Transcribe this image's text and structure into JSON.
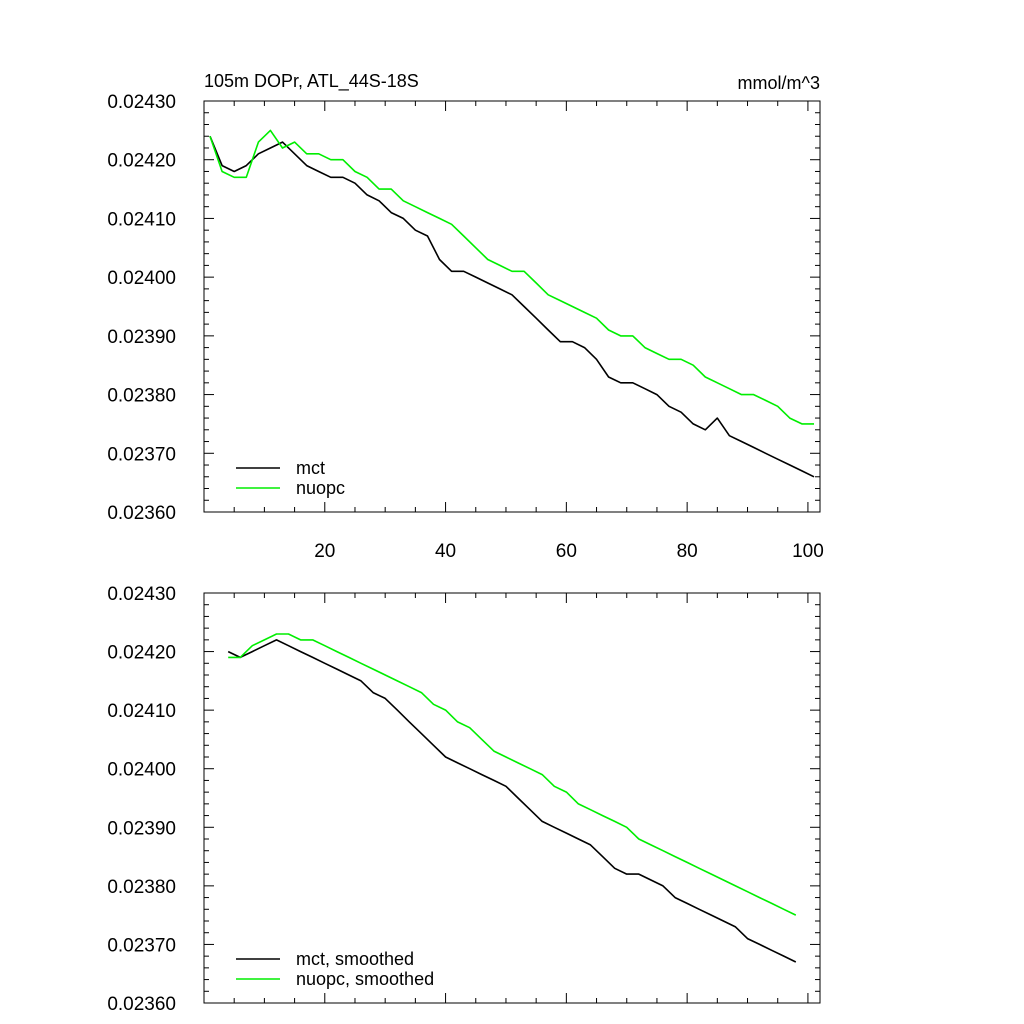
{
  "chart_data": [
    {
      "type": "line",
      "title": "105m DOPr, ATL_44S-18S",
      "units": "mmol/m^3",
      "xlabel": "",
      "ylabel": "",
      "xlim": [
        0,
        102
      ],
      "ylim": [
        0.0236,
        0.0243
      ],
      "yticks": [
        "0.02430",
        "0.02420",
        "0.02410",
        "0.02400",
        "0.02390",
        "0.02380",
        "0.02370",
        "0.02360"
      ],
      "ytick_values": [
        0.0243,
        0.0242,
        0.0241,
        0.024,
        0.0239,
        0.0238,
        0.0237,
        0.0236
      ],
      "xticks": [
        "20",
        "40",
        "60",
        "80",
        "100"
      ],
      "xtick_values": [
        20,
        40,
        60,
        80,
        100
      ],
      "legend_position": "bottom-left",
      "series": [
        {
          "name": "mct",
          "color": "#000000",
          "x": [
            1,
            3,
            5,
            7,
            9,
            11,
            13,
            15,
            17,
            19,
            21,
            23,
            25,
            27,
            29,
            31,
            33,
            35,
            37,
            39,
            41,
            43,
            45,
            47,
            49,
            51,
            53,
            55,
            57,
            59,
            61,
            63,
            65,
            67,
            69,
            71,
            73,
            75,
            77,
            79,
            81,
            83,
            85,
            87,
            89,
            91,
            93,
            95,
            97,
            99,
            101
          ],
          "values": [
            0.02424,
            0.02419,
            0.02418,
            0.02419,
            0.02421,
            0.02422,
            0.02423,
            0.02421,
            0.02419,
            0.02418,
            0.02417,
            0.02417,
            0.02416,
            0.02414,
            0.02413,
            0.02411,
            0.0241,
            0.02408,
            0.02407,
            0.02403,
            0.02401,
            0.02401,
            0.024,
            0.02399,
            0.02398,
            0.02397,
            0.02395,
            0.02393,
            0.02391,
            0.02389,
            0.02389,
            0.02388,
            0.02386,
            0.02383,
            0.02382,
            0.02382,
            0.02381,
            0.0238,
            0.02378,
            0.02377,
            0.02375,
            0.02374,
            0.02376,
            0.02373,
            0.02372,
            0.02371,
            0.0237,
            0.02369,
            0.02368,
            0.02367,
            0.02366
          ]
        },
        {
          "name": "nuopc",
          "color": "#00ee00",
          "x": [
            1,
            3,
            5,
            7,
            9,
            11,
            13,
            15,
            17,
            19,
            21,
            23,
            25,
            27,
            29,
            31,
            33,
            35,
            37,
            39,
            41,
            43,
            45,
            47,
            49,
            51,
            53,
            55,
            57,
            59,
            61,
            63,
            65,
            67,
            69,
            71,
            73,
            75,
            77,
            79,
            81,
            83,
            85,
            87,
            89,
            91,
            93,
            95,
            97,
            99,
            101
          ],
          "values": [
            0.02424,
            0.02418,
            0.02417,
            0.02417,
            0.02423,
            0.02425,
            0.02422,
            0.02423,
            0.02421,
            0.02421,
            0.0242,
            0.0242,
            0.02418,
            0.02417,
            0.02415,
            0.02415,
            0.02413,
            0.02412,
            0.02411,
            0.0241,
            0.02409,
            0.02407,
            0.02405,
            0.02403,
            0.02402,
            0.02401,
            0.02401,
            0.02399,
            0.02397,
            0.02396,
            0.02395,
            0.02394,
            0.02393,
            0.02391,
            0.0239,
            0.0239,
            0.02388,
            0.02387,
            0.02386,
            0.02386,
            0.02385,
            0.02383,
            0.02382,
            0.02381,
            0.0238,
            0.0238,
            0.02379,
            0.02378,
            0.02376,
            0.02375,
            0.02375
          ]
        }
      ]
    },
    {
      "type": "line",
      "title": "",
      "xlabel": "",
      "ylabel": "",
      "xlim": [
        0,
        102
      ],
      "ylim": [
        0.0236,
        0.0243
      ],
      "yticks": [
        "0.02430",
        "0.02420",
        "0.02410",
        "0.02400",
        "0.02390",
        "0.02380",
        "0.02370",
        "0.02360"
      ],
      "ytick_values": [
        0.0243,
        0.0242,
        0.0241,
        0.024,
        0.0239,
        0.0238,
        0.0237,
        0.0236
      ],
      "xticks": [],
      "xtick_values": [
        20,
        40,
        60,
        80,
        100
      ],
      "legend_position": "bottom-left",
      "series": [
        {
          "name": "mct, smoothed",
          "color": "#000000",
          "x": [
            4,
            6,
            8,
            10,
            12,
            14,
            16,
            18,
            20,
            22,
            24,
            26,
            28,
            30,
            32,
            34,
            36,
            38,
            40,
            42,
            44,
            46,
            48,
            50,
            52,
            54,
            56,
            58,
            60,
            62,
            64,
            66,
            68,
            70,
            72,
            74,
            76,
            78,
            80,
            82,
            84,
            86,
            88,
            90,
            92,
            94,
            96,
            98
          ],
          "values": [
            0.0242,
            0.02419,
            0.0242,
            0.02421,
            0.02422,
            0.02421,
            0.0242,
            0.02419,
            0.02418,
            0.02417,
            0.02416,
            0.02415,
            0.02413,
            0.02412,
            0.0241,
            0.02408,
            0.02406,
            0.02404,
            0.02402,
            0.02401,
            0.024,
            0.02399,
            0.02398,
            0.02397,
            0.02395,
            0.02393,
            0.02391,
            0.0239,
            0.02389,
            0.02388,
            0.02387,
            0.02385,
            0.02383,
            0.02382,
            0.02382,
            0.02381,
            0.0238,
            0.02378,
            0.02377,
            0.02376,
            0.02375,
            0.02374,
            0.02373,
            0.02371,
            0.0237,
            0.02369,
            0.02368,
            0.02367
          ]
        },
        {
          "name": "nuopc, smoothed",
          "color": "#00ee00",
          "x": [
            4,
            6,
            8,
            10,
            12,
            14,
            16,
            18,
            20,
            22,
            24,
            26,
            28,
            30,
            32,
            34,
            36,
            38,
            40,
            42,
            44,
            46,
            48,
            50,
            52,
            54,
            56,
            58,
            60,
            62,
            64,
            66,
            68,
            70,
            72,
            74,
            76,
            78,
            80,
            82,
            84,
            86,
            88,
            90,
            92,
            94,
            96,
            98
          ],
          "values": [
            0.02419,
            0.02419,
            0.02421,
            0.02422,
            0.02423,
            0.02423,
            0.02422,
            0.02422,
            0.02421,
            0.0242,
            0.02419,
            0.02418,
            0.02417,
            0.02416,
            0.02415,
            0.02414,
            0.02413,
            0.02411,
            0.0241,
            0.02408,
            0.02407,
            0.02405,
            0.02403,
            0.02402,
            0.02401,
            0.024,
            0.02399,
            0.02397,
            0.02396,
            0.02394,
            0.02393,
            0.02392,
            0.02391,
            0.0239,
            0.02388,
            0.02387,
            0.02386,
            0.02385,
            0.02384,
            0.02383,
            0.02382,
            0.02381,
            0.0238,
            0.02379,
            0.02378,
            0.02377,
            0.02376,
            0.02375
          ]
        }
      ]
    }
  ]
}
